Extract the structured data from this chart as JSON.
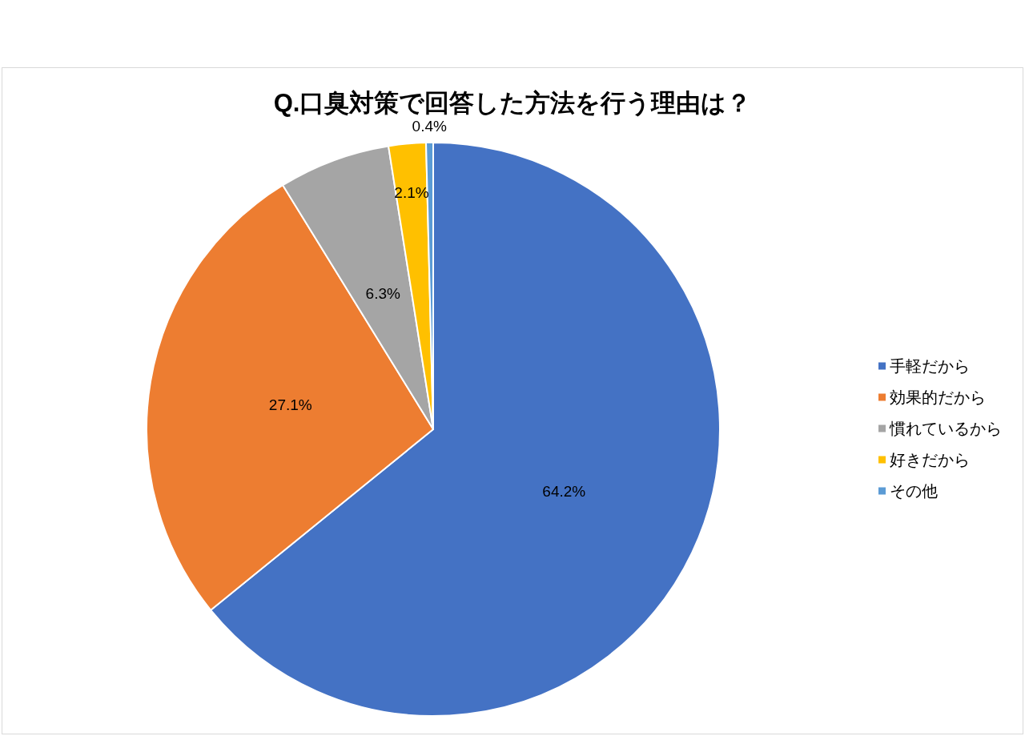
{
  "chart_data": {
    "type": "pie",
    "title": "Q.口臭対策で回答した方法を行う理由は？",
    "categories": [
      "手軽だから",
      "効果的だから",
      "慣れているから",
      "好きだから",
      "その他"
    ],
    "values": [
      64.2,
      27.1,
      6.3,
      2.1,
      0.4
    ],
    "colors": [
      "#4472c4",
      "#ed7d31",
      "#a5a5a5",
      "#ffc000",
      "#5b9bd5"
    ],
    "value_labels": [
      "64.2%",
      "27.1%",
      "6.3%",
      "2.1%",
      "0.4%"
    ],
    "legend": "right"
  }
}
